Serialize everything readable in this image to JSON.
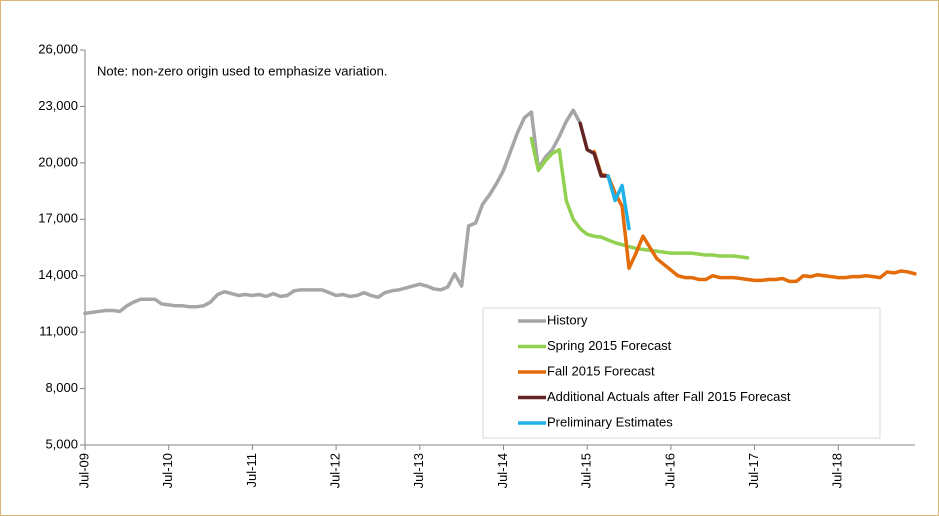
{
  "chart_data": {
    "type": "line",
    "annotation": "Note: non-zero origin used to emphasize variation.",
    "categories": [
      "Jul-09",
      null,
      null,
      null,
      null,
      null,
      null,
      null,
      null,
      null,
      null,
      null,
      "Jul-10",
      null,
      null,
      null,
      null,
      null,
      null,
      null,
      null,
      null,
      null,
      null,
      "Jul-11",
      null,
      null,
      null,
      null,
      null,
      null,
      null,
      null,
      null,
      null,
      null,
      "Jul-12",
      null,
      null,
      null,
      null,
      null,
      null,
      null,
      null,
      null,
      null,
      null,
      "Jul-13",
      null,
      null,
      null,
      null,
      null,
      null,
      null,
      null,
      null,
      null,
      null,
      "Jul-14",
      null,
      null,
      null,
      null,
      null,
      null,
      null,
      null,
      null,
      null,
      null,
      "Jul-15",
      null,
      null,
      null,
      null,
      null,
      null,
      null,
      null,
      null,
      null,
      null,
      "Jul-16",
      null,
      null,
      null,
      null,
      null,
      null,
      null,
      null,
      null,
      null,
      null,
      "Jul-17",
      null,
      null,
      null,
      null,
      null,
      null,
      null,
      null,
      null,
      null,
      null,
      "Jul-18",
      null,
      null,
      null,
      null,
      null,
      null,
      null,
      null,
      null,
      null,
      null
    ],
    "series": [
      {
        "name": "History",
        "color": "#a6a6a6",
        "values": [
          12000,
          12050,
          12100,
          12150,
          12150,
          12100,
          12400,
          12600,
          12750,
          12750,
          12750,
          12500,
          12450,
          12400,
          12400,
          12350,
          12350,
          12400,
          12600,
          13000,
          13150,
          13050,
          12950,
          13000,
          12950,
          13000,
          12900,
          13050,
          12900,
          12950,
          13200,
          13250,
          13250,
          13250,
          13250,
          13100,
          12950,
          13000,
          12900,
          12950,
          13100,
          12950,
          12850,
          13100,
          13200,
          13250,
          13350,
          13450,
          13550,
          13450,
          13300,
          13250,
          13400,
          14100,
          13450,
          16650,
          16800,
          17800,
          18300,
          18900,
          19600,
          20600,
          21600,
          22400,
          22700,
          19700,
          20300,
          20700,
          21400,
          22200,
          22800,
          22100,
          null,
          null,
          null,
          null,
          null,
          null,
          null,
          null,
          null,
          null,
          null,
          null,
          null,
          null,
          null,
          null,
          null,
          null,
          null,
          null,
          null,
          null,
          null,
          null,
          null,
          null,
          null,
          null,
          null,
          null,
          null,
          null,
          null,
          null,
          null,
          null,
          null,
          null,
          null,
          null,
          null,
          null,
          null,
          null,
          null,
          null,
          null,
          null
        ]
      },
      {
        "name": "Spring 2015 Forecast",
        "color": "#92d050",
        "values": [
          null,
          null,
          null,
          null,
          null,
          null,
          null,
          null,
          null,
          null,
          null,
          null,
          null,
          null,
          null,
          null,
          null,
          null,
          null,
          null,
          null,
          null,
          null,
          null,
          null,
          null,
          null,
          null,
          null,
          null,
          null,
          null,
          null,
          null,
          null,
          null,
          null,
          null,
          null,
          null,
          null,
          null,
          null,
          null,
          null,
          null,
          null,
          null,
          null,
          null,
          null,
          null,
          null,
          null,
          null,
          null,
          null,
          null,
          null,
          null,
          null,
          null,
          null,
          null,
          21300,
          19600,
          20100,
          20500,
          20700,
          18000,
          17000,
          16500,
          16200,
          16100,
          16050,
          15900,
          15750,
          15650,
          15550,
          15450,
          15400,
          15350,
          15300,
          15250,
          15200,
          15200,
          15200,
          15200,
          15150,
          15100,
          15100,
          15050,
          15050,
          15050,
          15000,
          14950,
          null,
          null,
          null,
          null,
          null,
          null,
          null,
          null,
          null,
          null,
          null,
          null,
          null,
          null,
          null,
          null,
          null,
          null,
          null,
          null,
          null,
          null,
          null,
          null
        ]
      },
      {
        "name": "Fall 2015 Forecast",
        "color": "#e36c09",
        "values": [
          null,
          null,
          null,
          null,
          null,
          null,
          null,
          null,
          null,
          null,
          null,
          null,
          null,
          null,
          null,
          null,
          null,
          null,
          null,
          null,
          null,
          null,
          null,
          null,
          null,
          null,
          null,
          null,
          null,
          null,
          null,
          null,
          null,
          null,
          null,
          null,
          null,
          null,
          null,
          null,
          null,
          null,
          null,
          null,
          null,
          null,
          null,
          null,
          null,
          null,
          null,
          null,
          null,
          null,
          null,
          null,
          null,
          null,
          null,
          null,
          null,
          null,
          null,
          null,
          null,
          null,
          null,
          null,
          null,
          null,
          null,
          null,
          null,
          20600,
          19400,
          19300,
          18400,
          17700,
          14400,
          15200,
          16100,
          15500,
          14900,
          14600,
          14300,
          14000,
          13900,
          13900,
          13800,
          13800,
          14000,
          13900,
          13900,
          13900,
          13850,
          13800,
          13750,
          13750,
          13800,
          13800,
          13850,
          13700,
          13700,
          14000,
          13950,
          14050,
          14000,
          13950,
          13900,
          13900,
          13950,
          13950,
          14000,
          13950,
          13900,
          14200,
          14150,
          14250,
          14200,
          14100
        ]
      },
      {
        "name": "Additional Actuals after Fall 2015 Forecast",
        "color": "#632523",
        "values": [
          null,
          null,
          null,
          null,
          null,
          null,
          null,
          null,
          null,
          null,
          null,
          null,
          null,
          null,
          null,
          null,
          null,
          null,
          null,
          null,
          null,
          null,
          null,
          null,
          null,
          null,
          null,
          null,
          null,
          null,
          null,
          null,
          null,
          null,
          null,
          null,
          null,
          null,
          null,
          null,
          null,
          null,
          null,
          null,
          null,
          null,
          null,
          null,
          null,
          null,
          null,
          null,
          null,
          null,
          null,
          null,
          null,
          null,
          null,
          null,
          null,
          null,
          null,
          null,
          null,
          null,
          null,
          null,
          null,
          null,
          null,
          22100,
          20700,
          20500,
          19300,
          19300,
          null,
          null,
          null,
          null,
          null,
          null,
          null,
          null,
          null,
          null,
          null,
          null,
          null,
          null,
          null,
          null,
          null,
          null,
          null,
          null,
          null,
          null,
          null,
          null,
          null,
          null,
          null,
          null,
          null,
          null,
          null,
          null,
          null,
          null,
          null,
          null,
          null,
          null,
          null,
          null,
          null,
          null,
          null,
          null
        ]
      },
      {
        "name": "Preliminary Estimates",
        "color": "#1fb2e8",
        "values": [
          null,
          null,
          null,
          null,
          null,
          null,
          null,
          null,
          null,
          null,
          null,
          null,
          null,
          null,
          null,
          null,
          null,
          null,
          null,
          null,
          null,
          null,
          null,
          null,
          null,
          null,
          null,
          null,
          null,
          null,
          null,
          null,
          null,
          null,
          null,
          null,
          null,
          null,
          null,
          null,
          null,
          null,
          null,
          null,
          null,
          null,
          null,
          null,
          null,
          null,
          null,
          null,
          null,
          null,
          null,
          null,
          null,
          null,
          null,
          null,
          null,
          null,
          null,
          null,
          null,
          null,
          null,
          null,
          null,
          null,
          null,
          null,
          null,
          null,
          null,
          19300,
          18000,
          18800,
          16500,
          null,
          null,
          null,
          null,
          null,
          null,
          null,
          null,
          null,
          null,
          null,
          null,
          null,
          null,
          null,
          null,
          null,
          null,
          null,
          null,
          null,
          null,
          null,
          null,
          null,
          null,
          null,
          null,
          null,
          null,
          null,
          null,
          null,
          null,
          null,
          null,
          null,
          null,
          null,
          null,
          null
        ]
      }
    ],
    "ylim": [
      5000,
      26000
    ],
    "yticks": [
      {
        "value": 5000,
        "label": "5,000"
      },
      {
        "value": 8000,
        "label": "8,000"
      },
      {
        "value": 11000,
        "label": "11,000"
      },
      {
        "value": 14000,
        "label": "14,000"
      },
      {
        "value": 17000,
        "label": "17,000"
      },
      {
        "value": 20000,
        "label": "20,000"
      },
      {
        "value": 23000,
        "label": "23,000"
      },
      {
        "value": 26000,
        "label": "26,000"
      }
    ],
    "grid": false,
    "legend": "lower right"
  }
}
